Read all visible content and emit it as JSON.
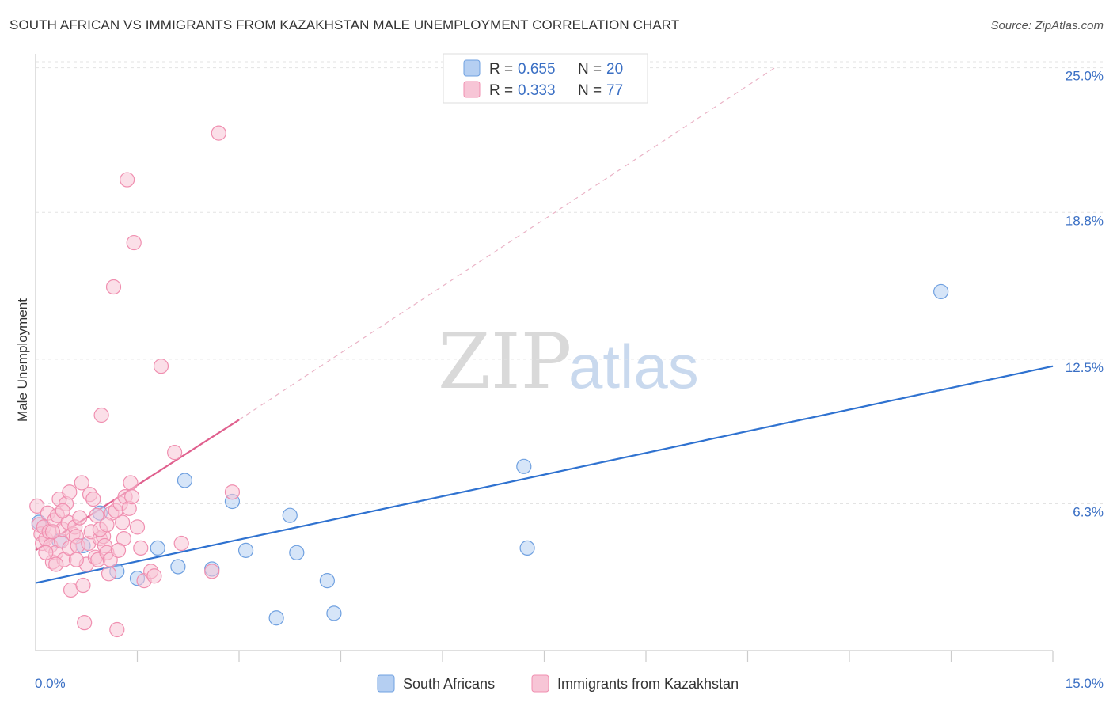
{
  "header": {
    "title": "SOUTH AFRICAN VS IMMIGRANTS FROM KAZAKHSTAN MALE UNEMPLOYMENT CORRELATION CHART",
    "source": "Source: ZipAtlas.com"
  },
  "watermark": {
    "zip": "ZIP",
    "atlas": "atlas"
  },
  "chart_data": {
    "type": "scatter",
    "title": "SOUTH AFRICAN VS IMMIGRANTS FROM KAZAKHSTAN MALE UNEMPLOYMENT CORRELATION CHART",
    "xlabel": "",
    "ylabel": "Male Unemployment",
    "xlim": [
      0,
      15
    ],
    "ylim": [
      0,
      25.6
    ],
    "x_tick_labels": [
      "0.0%",
      "15.0%"
    ],
    "y_ticks": [
      6.3,
      12.5,
      18.8,
      25.0
    ],
    "y_tick_labels": [
      "6.3%",
      "12.5%",
      "18.8%",
      "25.0%"
    ],
    "grid": true,
    "legend": {
      "placement": "top-center",
      "entries": [
        {
          "r_label": "R =",
          "r_value": "0.655",
          "n_label": "N =",
          "n_value": "20"
        },
        {
          "r_label": "R =",
          "r_value": "0.333",
          "n_label": "N =",
          "n_value": "77"
        }
      ]
    },
    "series": [
      {
        "name": "South Africans",
        "color": "#6fa0e0",
        "fill": "#b5cff2",
        "line_color": "#2f72d0",
        "trend": {
          "x": [
            0,
            15
          ],
          "y": [
            2.9,
            12.2
          ]
        },
        "points": [
          [
            0.05,
            5.5
          ],
          [
            0.35,
            4.7
          ],
          [
            0.7,
            4.5
          ],
          [
            0.95,
            5.9
          ],
          [
            1.2,
            3.4
          ],
          [
            1.5,
            3.1
          ],
          [
            1.8,
            4.4
          ],
          [
            2.1,
            3.6
          ],
          [
            2.2,
            7.3
          ],
          [
            2.6,
            3.5
          ],
          [
            2.9,
            6.4
          ],
          [
            3.1,
            4.3
          ],
          [
            3.55,
            1.4
          ],
          [
            3.75,
            5.8
          ],
          [
            3.85,
            4.2
          ],
          [
            4.3,
            3.0
          ],
          [
            4.4,
            1.6
          ],
          [
            7.2,
            7.9
          ],
          [
            7.25,
            4.4
          ],
          [
            13.35,
            15.4
          ]
        ]
      },
      {
        "name": "Immigrants from Kazakhstan",
        "color": "#f08fb0",
        "fill": "#f7c5d6",
        "line_color": "#e0608e",
        "trend": {
          "x": [
            0,
            3.0
          ],
          "y": [
            4.3,
            9.9
          ]
        },
        "trend_extension": {
          "x": [
            3.0,
            10.9
          ],
          "y": [
            9.9,
            25.0
          ]
        },
        "points": [
          [
            0.02,
            6.2
          ],
          [
            0.05,
            5.4
          ],
          [
            0.08,
            5.0
          ],
          [
            0.1,
            4.6
          ],
          [
            0.12,
            5.3
          ],
          [
            0.15,
            4.8
          ],
          [
            0.18,
            5.9
          ],
          [
            0.2,
            5.1
          ],
          [
            0.22,
            4.5
          ],
          [
            0.25,
            3.8
          ],
          [
            0.28,
            5.6
          ],
          [
            0.3,
            4.2
          ],
          [
            0.32,
            5.8
          ],
          [
            0.35,
            6.5
          ],
          [
            0.38,
            4.7
          ],
          [
            0.4,
            5.2
          ],
          [
            0.42,
            3.9
          ],
          [
            0.45,
            6.3
          ],
          [
            0.48,
            5.5
          ],
          [
            0.5,
            4.4
          ],
          [
            0.5,
            6.8
          ],
          [
            0.52,
            2.6
          ],
          [
            0.55,
            5.0
          ],
          [
            0.58,
            5.3
          ],
          [
            0.6,
            4.9
          ],
          [
            0.62,
            4.5
          ],
          [
            0.65,
            5.7
          ],
          [
            0.68,
            7.2
          ],
          [
            0.7,
            2.8
          ],
          [
            0.72,
            1.2
          ],
          [
            0.75,
            3.7
          ],
          [
            0.78,
            4.6
          ],
          [
            0.8,
            6.7
          ],
          [
            0.82,
            5.1
          ],
          [
            0.85,
            6.5
          ],
          [
            0.88,
            4.0
          ],
          [
            0.9,
            5.8
          ],
          [
            0.92,
            3.9
          ],
          [
            0.95,
            4.8
          ],
          [
            0.97,
            10.1
          ],
          [
            1.0,
            4.9
          ],
          [
            1.02,
            4.5
          ],
          [
            1.05,
            4.2
          ],
          [
            1.08,
            3.3
          ],
          [
            1.1,
            3.9
          ],
          [
            1.12,
            5.9
          ],
          [
            1.15,
            15.6
          ],
          [
            1.18,
            6.0
          ],
          [
            1.2,
            0.9
          ],
          [
            1.25,
            6.3
          ],
          [
            1.28,
            5.5
          ],
          [
            1.3,
            4.8
          ],
          [
            1.32,
            6.6
          ],
          [
            1.35,
            20.2
          ],
          [
            1.38,
            6.1
          ],
          [
            1.4,
            7.2
          ],
          [
            1.42,
            6.6
          ],
          [
            1.45,
            17.5
          ],
          [
            1.5,
            5.3
          ],
          [
            1.55,
            4.4
          ],
          [
            1.6,
            3.0
          ],
          [
            1.7,
            3.4
          ],
          [
            1.75,
            3.2
          ],
          [
            1.85,
            12.2
          ],
          [
            2.05,
            8.5
          ],
          [
            2.15,
            4.6
          ],
          [
            2.6,
            3.4
          ],
          [
            2.7,
            22.2
          ],
          [
            2.9,
            6.8
          ],
          [
            0.6,
            3.9
          ],
          [
            0.95,
            5.2
          ],
          [
            1.05,
            5.4
          ],
          [
            0.15,
            4.2
          ],
          [
            0.3,
            3.7
          ],
          [
            1.22,
            4.3
          ],
          [
            0.4,
            6.0
          ],
          [
            0.25,
            5.1
          ]
        ]
      }
    ]
  },
  "bottom_legend": [
    {
      "label": "South Africans"
    },
    {
      "label": "Immigrants from Kazakhstan"
    }
  ]
}
